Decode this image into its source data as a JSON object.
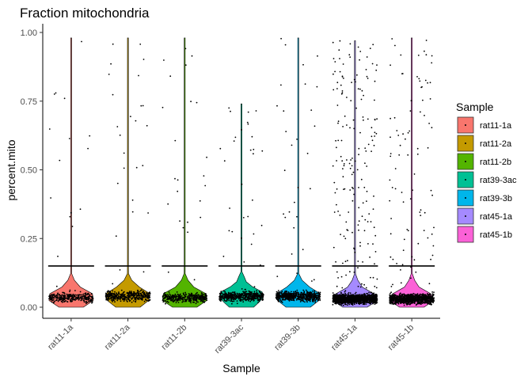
{
  "chart_data": {
    "type": "violin",
    "title": "Fraction mitochondria",
    "xlabel": "Sample",
    "ylabel": "percent.mito",
    "categories": [
      "rat11-1a",
      "rat11-2a",
      "rat11-2b",
      "rat39-3ac",
      "rat39-3b",
      "rat45-1a",
      "rat45-1b"
    ],
    "ylim": [
      -0.03,
      1.0
    ],
    "yticks": [
      0.0,
      0.25,
      0.5,
      0.75,
      1.0
    ],
    "ytick_labels": [
      "0.00",
      "0.25",
      "0.50",
      "0.75",
      "1.00"
    ],
    "grid": false,
    "legend": {
      "title": "Sample",
      "position": "right",
      "entries": [
        "rat11-1a",
        "rat11-2a",
        "rat11-2b",
        "rat39-3ac",
        "rat39-3b",
        "rat45-1a",
        "rat45-1b"
      ]
    },
    "series": [
      {
        "name": "rat11-1a",
        "color": "#F8766D",
        "median": 0.035,
        "max": 0.98,
        "threshold": 0.15
      },
      {
        "name": "rat11-2a",
        "color": "#C49A00",
        "median": 0.04,
        "max": 0.98,
        "threshold": 0.15
      },
      {
        "name": "rat11-2b",
        "color": "#53B400",
        "median": 0.035,
        "max": 0.98,
        "threshold": 0.15
      },
      {
        "name": "rat39-3ac",
        "color": "#00C094",
        "median": 0.04,
        "max": 0.74,
        "threshold": 0.15
      },
      {
        "name": "rat39-3b",
        "color": "#00B6EB",
        "median": 0.04,
        "max": 0.98,
        "threshold": 0.15
      },
      {
        "name": "rat45-1a",
        "color": "#A58AFF",
        "median": 0.03,
        "max": 0.97,
        "threshold": 0.15
      },
      {
        "name": "rat45-1b",
        "color": "#FB61D7",
        "median": 0.03,
        "max": 0.98,
        "threshold": 0.15
      }
    ],
    "threshold_line": 0.15
  }
}
